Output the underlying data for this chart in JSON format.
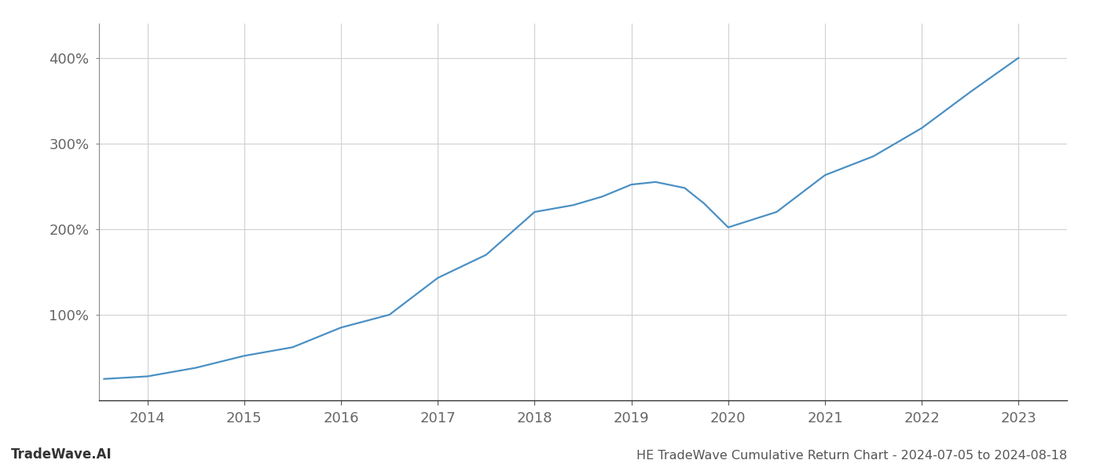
{
  "x_years": [
    2013.55,
    2014,
    2014.5,
    2015,
    2015.5,
    2016,
    2016.5,
    2017,
    2017.5,
    2018,
    2018.4,
    2018.7,
    2019,
    2019.25,
    2019.55,
    2019.75,
    2020,
    2020.5,
    2021,
    2021.5,
    2022,
    2022.5,
    2023
  ],
  "y_values": [
    25,
    28,
    38,
    52,
    62,
    85,
    100,
    143,
    170,
    220,
    228,
    238,
    252,
    255,
    248,
    230,
    202,
    220,
    263,
    285,
    318,
    360,
    400
  ],
  "line_color": "#4a90c4",
  "line_width": 1.6,
  "background_color": "#ffffff",
  "grid_color": "#d0d0d0",
  "title": "HE TradeWave Cumulative Return Chart - 2024-07-05 to 2024-08-18",
  "watermark": "TradeWave.AI",
  "xlim": [
    2013.5,
    2023.5
  ],
  "ylim": [
    0,
    440
  ],
  "yticks": [
    100,
    200,
    300,
    400
  ],
  "ytick_labels": [
    "100%",
    "200%",
    "300%",
    "400%"
  ],
  "xticks": [
    2014,
    2015,
    2016,
    2017,
    2018,
    2019,
    2020,
    2021,
    2022,
    2023
  ],
  "tick_fontsize": 13,
  "title_fontsize": 11.5,
  "watermark_fontsize": 12
}
